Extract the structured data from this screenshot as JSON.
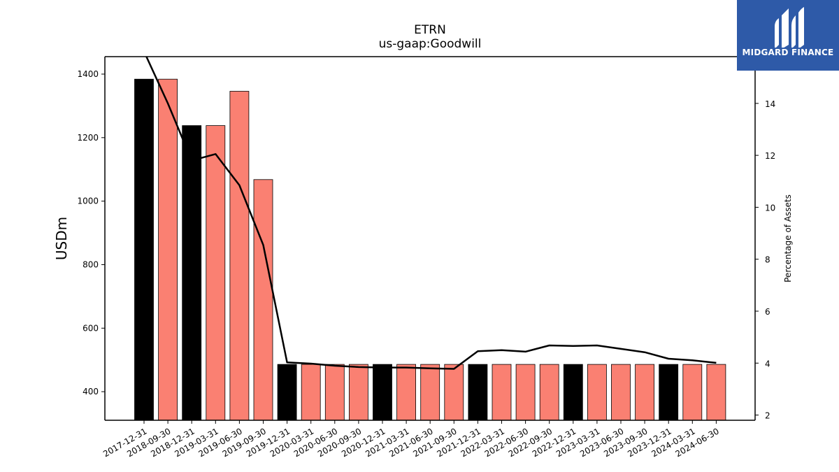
{
  "chart_data": {
    "type": "bar",
    "title": "ETRN",
    "subtitle": "us-gaap:Goodwill",
    "ylabel": "USDm",
    "y2label": "Percentage of Assets",
    "xlabel": "",
    "ylim": [
      310,
      1455
    ],
    "y2lim": [
      1.8,
      15.8
    ],
    "yticks": [
      400,
      600,
      800,
      1000,
      1200,
      1400
    ],
    "y2ticks": [
      2,
      4,
      6,
      8,
      10,
      12,
      14
    ],
    "grid": false,
    "categories": [
      "2017-12-31",
      "2018-09-30",
      "2018-12-31",
      "2019-03-31",
      "2019-06-30",
      "2019-09-30",
      "2019-12-31",
      "2020-03-31",
      "2020-06-30",
      "2020-09-30",
      "2020-12-31",
      "2021-03-31",
      "2021-06-30",
      "2021-09-30",
      "2021-12-31",
      "2022-03-31",
      "2022-06-30",
      "2022-09-30",
      "2022-12-31",
      "2023-03-31",
      "2023-06-30",
      "2023-09-30",
      "2023-12-31",
      "2024-03-31",
      "2024-06-30"
    ],
    "series": [
      {
        "kind": "bar",
        "values": [
          1384,
          1384,
          1238,
          1238,
          1346,
          1068,
          486,
          486,
          486,
          486,
          486,
          486,
          486,
          486,
          486,
          486,
          486,
          486,
          486,
          486,
          486,
          486,
          486,
          486,
          486
        ],
        "year_end_color": "#000000",
        "other_color": "#fa8072",
        "year_end": [
          true,
          false,
          true,
          false,
          false,
          false,
          true,
          false,
          false,
          false,
          true,
          false,
          false,
          false,
          true,
          false,
          false,
          false,
          true,
          false,
          false,
          false,
          true,
          false,
          false
        ]
      },
      {
        "kind": "line",
        "axis": "right",
        "color": "#000000",
        "values": [
          16.0,
          14.0,
          11.8,
          12.05,
          10.85,
          8.55,
          4.03,
          3.98,
          3.9,
          3.85,
          3.83,
          3.83,
          3.8,
          3.78,
          4.46,
          4.5,
          4.44,
          4.68,
          4.66,
          4.68,
          4.55,
          4.42,
          4.17,
          4.11,
          4.01
        ]
      }
    ]
  },
  "logo": {
    "text": "MIDGARD FINANCE",
    "color": "#2e5aa8"
  }
}
